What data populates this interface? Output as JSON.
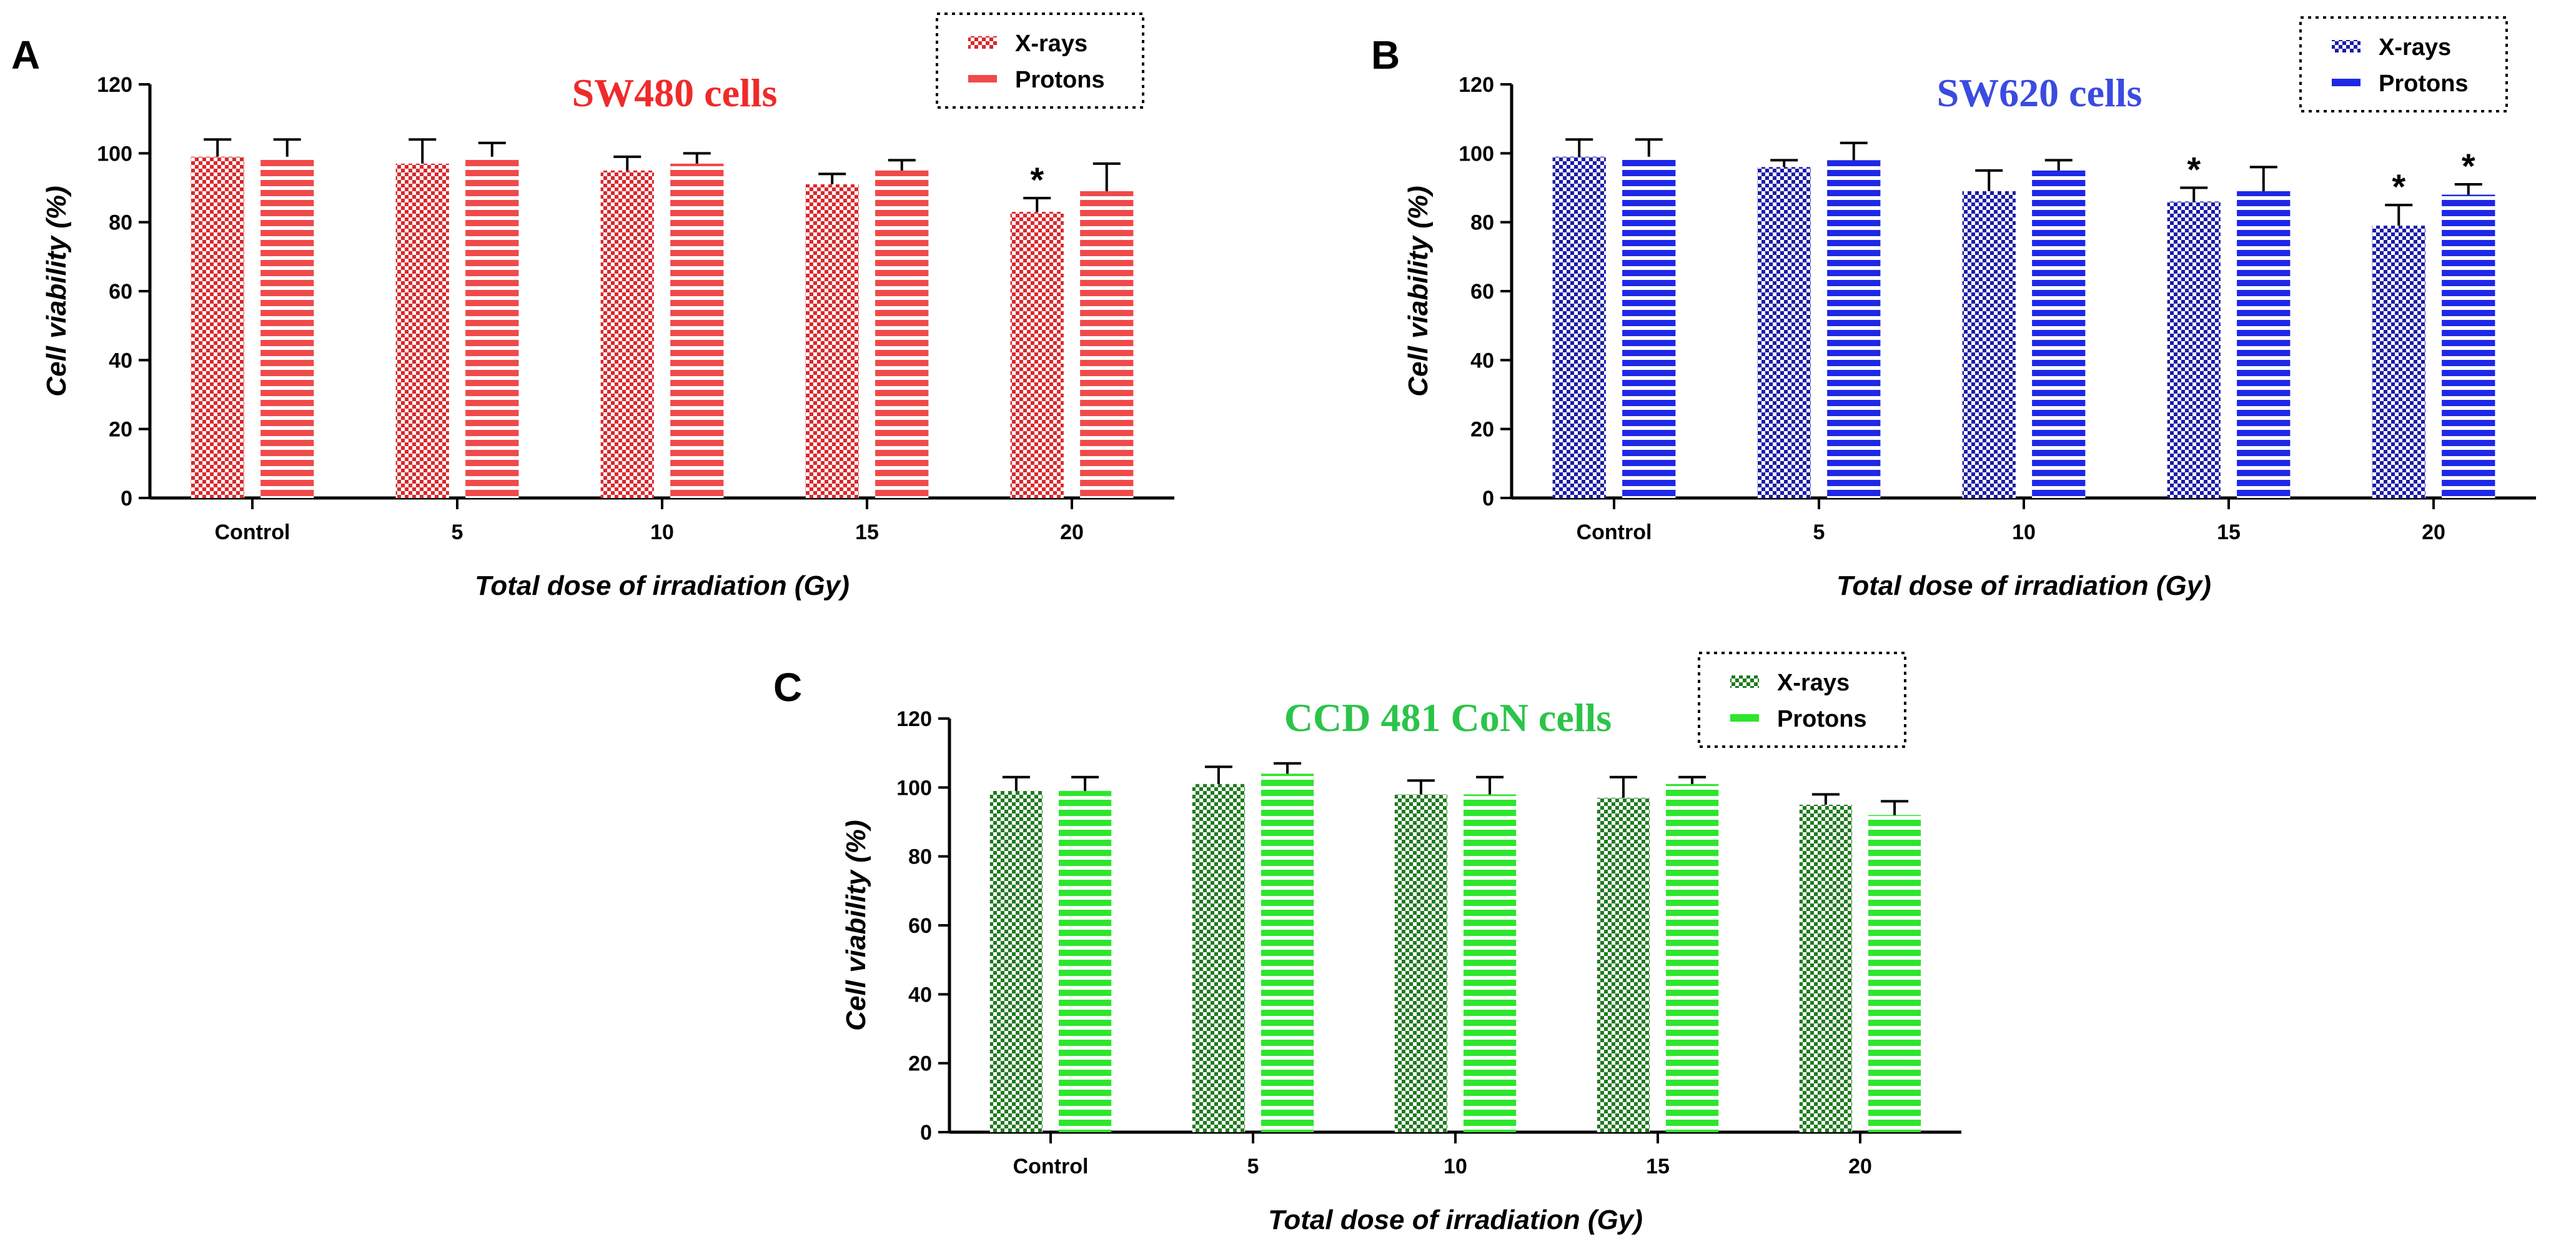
{
  "chart_data": [
    {
      "panel": "A",
      "type": "bar",
      "title": "SW480 cells",
      "title_color": "#ee2b2b",
      "colors": {
        "xrays": "#d9282c",
        "protons": "#f04a4a"
      },
      "xlabel": "Total dose of irradiation (Gy)",
      "ylabel": "Cell viability (%)",
      "ylim": [
        0,
        120
      ],
      "yticks": [
        "0",
        "20",
        "40",
        "60",
        "80",
        "100",
        "120"
      ],
      "categories": [
        "Control",
        "5",
        "10",
        "15",
        "20"
      ],
      "legend": [
        "X-rays",
        "Protons"
      ],
      "series": [
        {
          "name": "X-rays",
          "values": [
            99,
            97,
            95,
            91,
            83
          ],
          "errors": [
            5,
            7,
            4,
            3,
            4
          ],
          "significant": [
            false,
            false,
            false,
            false,
            true
          ]
        },
        {
          "name": "Protons",
          "values": [
            99,
            99,
            97,
            95,
            89
          ],
          "errors": [
            5,
            4,
            3,
            3,
            8
          ],
          "significant": [
            false,
            false,
            false,
            false,
            false
          ]
        }
      ],
      "significance_marker": "*"
    },
    {
      "panel": "B",
      "type": "bar",
      "title": "SW620 cells",
      "title_color": "#3a4be0",
      "colors": {
        "xrays": "#1a1aa8",
        "protons": "#1e28e6"
      },
      "xlabel": "Total dose of irradiation (Gy)",
      "ylabel": "Cell viability (%)",
      "ylim": [
        0,
        120
      ],
      "yticks": [
        "0",
        "20",
        "40",
        "60",
        "80",
        "100",
        "120"
      ],
      "categories": [
        "Control",
        "5",
        "10",
        "15",
        "20"
      ],
      "legend": [
        "X-rays",
        "Protons"
      ],
      "series": [
        {
          "name": "X-rays",
          "values": [
            99,
            96,
            89,
            86,
            79
          ],
          "errors": [
            5,
            2,
            6,
            4,
            6
          ],
          "significant": [
            false,
            false,
            false,
            true,
            true
          ]
        },
        {
          "name": "Protons",
          "values": [
            99,
            98,
            95,
            89,
            88
          ],
          "errors": [
            5,
            5,
            3,
            7,
            3
          ],
          "significant": [
            false,
            false,
            false,
            false,
            true
          ]
        }
      ],
      "significance_marker": "*"
    },
    {
      "panel": "C",
      "type": "bar",
      "title": "CCD 481 CoN cells",
      "title_color": "#2bc44a",
      "colors": {
        "xrays": "#1f7a1f",
        "protons": "#2ee62e"
      },
      "xlabel": "Total dose of irradiation (Gy)",
      "ylabel": "Cell viability (%)",
      "ylim": [
        0,
        120
      ],
      "yticks": [
        "0",
        "20",
        "40",
        "60",
        "80",
        "100",
        "120"
      ],
      "categories": [
        "Control",
        "5",
        "10",
        "15",
        "20"
      ],
      "legend": [
        "X-rays",
        "Protons"
      ],
      "series": [
        {
          "name": "X-rays",
          "values": [
            99,
            101,
            98,
            97,
            95
          ],
          "errors": [
            4,
            5,
            4,
            6,
            3
          ],
          "significant": [
            false,
            false,
            false,
            false,
            false
          ]
        },
        {
          "name": "Protons",
          "values": [
            99,
            104,
            98,
            101,
            92
          ],
          "errors": [
            4,
            3,
            5,
            2,
            4
          ],
          "significant": [
            false,
            false,
            false,
            false,
            false
          ]
        }
      ],
      "significance_marker": "*"
    }
  ]
}
